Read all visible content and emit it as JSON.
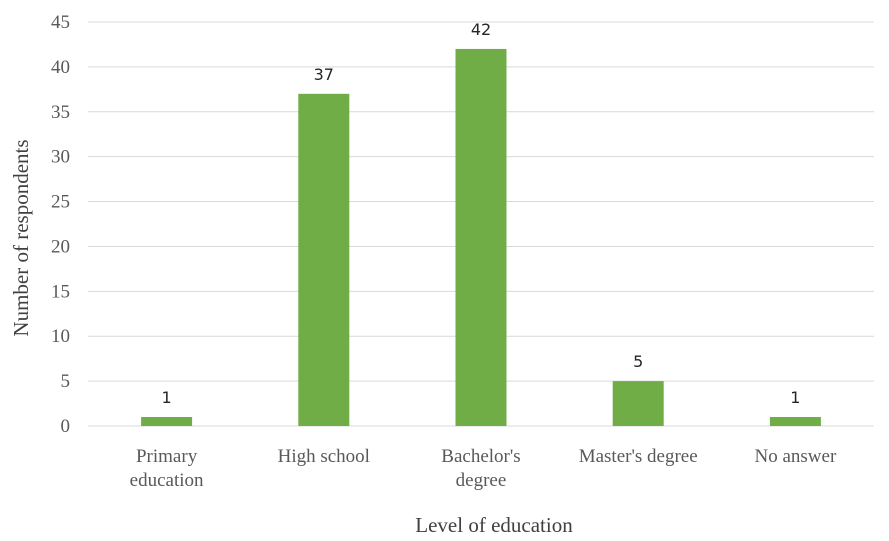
{
  "chart_data": {
    "type": "bar",
    "title": "",
    "xlabel": "Level of education",
    "ylabel": "Number of respondents",
    "categories": [
      [
        "Primary",
        "education"
      ],
      [
        "High school"
      ],
      [
        "Bachelor's",
        "degree"
      ],
      [
        "Master's degree"
      ],
      [
        "No answer"
      ]
    ],
    "values": [
      1,
      37,
      42,
      5,
      1
    ],
    "data_labels": [
      "1",
      "37",
      "42",
      "5",
      "1"
    ],
    "ylim": [
      0,
      45
    ],
    "yticks": [
      0,
      5,
      10,
      15,
      20,
      25,
      30,
      35,
      40,
      45
    ],
    "grid": true,
    "legend": "none",
    "bar_color": "#70ad47"
  }
}
